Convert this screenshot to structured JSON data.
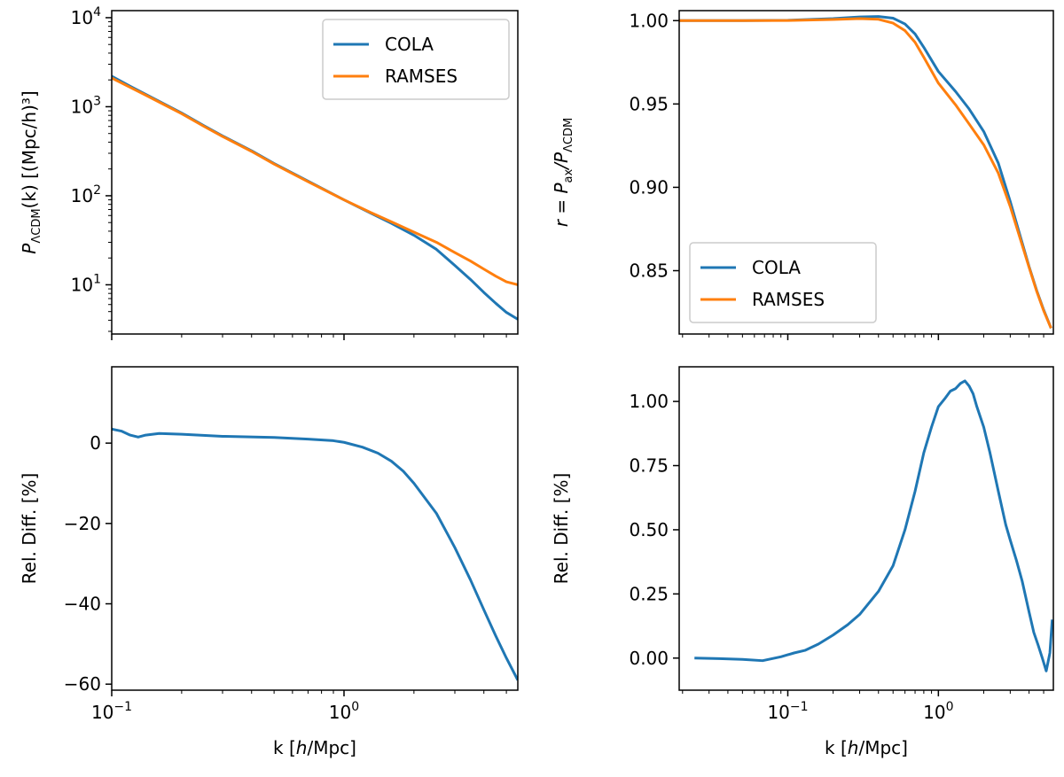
{
  "chart_data": [
    {
      "id": "power_spectrum",
      "type": "line",
      "xscale": "log",
      "yscale": "log",
      "xlim": [
        0.1,
        5.6
      ],
      "ylim": [
        2.8,
        12000
      ],
      "xlabel": "",
      "ylabel": {
        "symbol": "P",
        "subscript": "ΛCDM",
        "text": "(k) [(Mpc/h)³]"
      },
      "xticks": [
        0.1,
        1.0
      ],
      "xtick_labels_visible": false,
      "yticks": [
        10,
        100,
        1000,
        10000
      ],
      "ytick_labels": [
        {
          "base": "10",
          "exp": "1"
        },
        {
          "base": "10",
          "exp": "2"
        },
        {
          "base": "10",
          "exp": "3"
        },
        {
          "base": "10",
          "exp": "4"
        }
      ],
      "legend": {
        "position": "upper right",
        "entries": [
          "COLA",
          "RAMSES"
        ]
      },
      "series": [
        {
          "name": "COLA",
          "color": "#1f77b4",
          "x": [
            0.1,
            0.12,
            0.14,
            0.17,
            0.2,
            0.25,
            0.3,
            0.4,
            0.5,
            0.7,
            1.0,
            1.3,
            1.6,
            2.0,
            2.5,
            3.0,
            3.5,
            4.0,
            4.5,
            5.0,
            5.6
          ],
          "y": [
            2200,
            1700,
            1380,
            1060,
            850,
            610,
            470,
            320,
            230,
            146,
            90,
            64,
            49,
            36,
            25,
            16.5,
            11.5,
            8.2,
            6.2,
            4.9,
            4.1
          ]
        },
        {
          "name": "RAMSES",
          "color": "#ff7f0e",
          "x": [
            0.1,
            0.12,
            0.14,
            0.17,
            0.2,
            0.25,
            0.3,
            0.4,
            0.5,
            0.7,
            1.0,
            1.3,
            1.6,
            2.0,
            2.5,
            3.0,
            3.5,
            4.0,
            4.5,
            5.0,
            5.6
          ],
          "y": [
            2100,
            1650,
            1350,
            1040,
            835,
            600,
            463,
            315,
            227,
            144,
            90,
            65,
            51,
            39,
            30,
            23,
            18.5,
            15,
            12.5,
            10.8,
            10
          ]
        }
      ]
    },
    {
      "id": "ratio",
      "type": "line",
      "xscale": "log",
      "yscale": "linear",
      "xlim": [
        0.019,
        5.8
      ],
      "ylim": [
        0.812,
        1.006
      ],
      "xlabel": "",
      "ylabel": {
        "symbol": "r = P",
        "subscript": "ax",
        "text": "/P",
        "subscript2": "ΛCDM"
      },
      "xticks": [
        0.1,
        1.0
      ],
      "xtick_labels_visible": false,
      "yticks": [
        0.85,
        0.9,
        0.95,
        1.0
      ],
      "ytick_labels": [
        "0.85",
        "0.90",
        "0.95",
        "1.00"
      ],
      "legend": {
        "position": "lower left",
        "entries": [
          "COLA",
          "RAMSES"
        ]
      },
      "series": [
        {
          "name": "COLA",
          "color": "#1f77b4",
          "x": [
            0.019,
            0.05,
            0.1,
            0.2,
            0.3,
            0.4,
            0.5,
            0.6,
            0.7,
            0.8,
            1.0,
            1.3,
            1.6,
            2.0,
            2.5,
            3.0,
            3.5,
            4.0,
            4.5,
            5.0,
            5.6
          ],
          "y": [
            1.0,
            1.0,
            1.0002,
            1.0012,
            1.0022,
            1.0025,
            1.0015,
            0.998,
            0.992,
            0.984,
            0.9695,
            0.9575,
            0.947,
            0.9335,
            0.9145,
            0.8915,
            0.8705,
            0.8525,
            0.838,
            0.8265,
            0.8155
          ]
        },
        {
          "name": "RAMSES",
          "color": "#ff7f0e",
          "x": [
            0.019,
            0.05,
            0.1,
            0.2,
            0.3,
            0.4,
            0.5,
            0.6,
            0.7,
            0.8,
            1.0,
            1.3,
            1.6,
            2.0,
            2.5,
            3.0,
            3.5,
            4.0,
            4.5,
            5.0,
            5.6
          ],
          "y": [
            1.0,
            1.0,
            1.0001,
            1.0007,
            1.0012,
            1.0008,
            0.9985,
            0.994,
            0.987,
            0.978,
            0.9625,
            0.9495,
            0.938,
            0.9255,
            0.9085,
            0.8885,
            0.869,
            0.852,
            0.8375,
            0.826,
            0.8155
          ]
        }
      ]
    },
    {
      "id": "power_spectrum_rel_diff",
      "type": "line",
      "xscale": "log",
      "yscale": "linear",
      "xlim": [
        0.1,
        5.6
      ],
      "ylim": [
        -61.5,
        19
      ],
      "xlabel": "k [h/Mpc]",
      "ylabel": "Rel. Diff. [%]",
      "xticks": [
        0.1,
        1.0
      ],
      "xtick_labels": [
        {
          "base": "10",
          "exp": "−1"
        },
        {
          "base": "10",
          "exp": "0"
        }
      ],
      "yticks": [
        0,
        -20,
        -40,
        -60
      ],
      "ytick_labels": [
        "0",
        "−20",
        "−40",
        "−60"
      ],
      "series": [
        {
          "name": "Rel. Diff.",
          "color": "#1f77b4",
          "x": [
            0.1,
            0.11,
            0.12,
            0.13,
            0.14,
            0.16,
            0.2,
            0.3,
            0.5,
            0.7,
            0.9,
            1.0,
            1.2,
            1.4,
            1.6,
            1.8,
            2.0,
            2.5,
            3.0,
            3.5,
            4.0,
            4.5,
            5.0,
            5.6
          ],
          "y": [
            3.5,
            3.0,
            2.0,
            1.5,
            2.0,
            2.4,
            2.2,
            1.7,
            1.4,
            1.0,
            0.6,
            0.2,
            -1.0,
            -2.5,
            -4.5,
            -7.0,
            -10.0,
            -17.5,
            -26.0,
            -34.0,
            -41.5,
            -48.0,
            -53.5,
            -59.0
          ]
        }
      ]
    },
    {
      "id": "ratio_rel_diff",
      "type": "line",
      "xscale": "log",
      "yscale": "linear",
      "xlim": [
        0.019,
        5.8
      ],
      "ylim": [
        -0.125,
        1.135
      ],
      "xlabel": "k [h/Mpc]",
      "ylabel": "Rel. Diff. [%]",
      "xticks": [
        0.1,
        1.0
      ],
      "xtick_labels": [
        {
          "base": "10",
          "exp": "−1"
        },
        {
          "base": "10",
          "exp": "0"
        }
      ],
      "yticks": [
        0.0,
        0.25,
        0.5,
        0.75,
        1.0
      ],
      "ytick_labels": [
        "0.00",
        "0.25",
        "0.50",
        "0.75",
        "1.00"
      ],
      "series": [
        {
          "name": "Rel. Diff.",
          "color": "#1f77b4",
          "x": [
            0.024,
            0.035,
            0.05,
            0.068,
            0.09,
            0.11,
            0.13,
            0.16,
            0.2,
            0.25,
            0.3,
            0.4,
            0.5,
            0.6,
            0.7,
            0.8,
            0.9,
            1.0,
            1.1,
            1.2,
            1.3,
            1.4,
            1.5,
            1.6,
            1.7,
            1.8,
            2.0,
            2.2,
            2.5,
            2.8,
            3.0,
            3.3,
            3.6,
            4.0,
            4.3,
            4.6,
            4.9,
            5.2,
            5.5,
            5.7
          ],
          "y": [
            0.0,
            -0.002,
            -0.005,
            -0.01,
            0.005,
            0.02,
            0.03,
            0.055,
            0.09,
            0.13,
            0.17,
            0.26,
            0.36,
            0.5,
            0.65,
            0.8,
            0.9,
            0.98,
            1.01,
            1.04,
            1.05,
            1.07,
            1.08,
            1.06,
            1.03,
            0.98,
            0.9,
            0.8,
            0.65,
            0.52,
            0.46,
            0.38,
            0.3,
            0.18,
            0.1,
            0.05,
            0.0,
            -0.05,
            0.02,
            0.15
          ]
        }
      ]
    }
  ]
}
